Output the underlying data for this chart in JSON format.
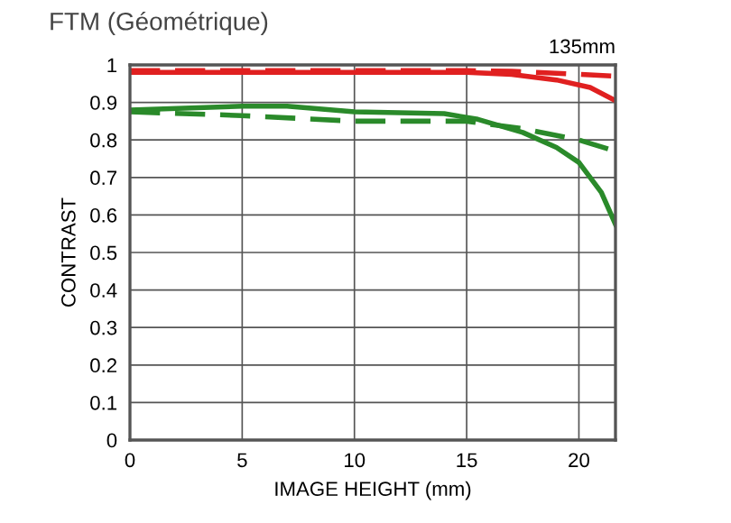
{
  "chart_data": {
    "type": "line",
    "title": "FTM (Géométrique)",
    "xlabel": "IMAGE HEIGHT (mm)",
    "ylabel": "CONTRAST",
    "annotations": [
      "135mm"
    ],
    "xlim": [
      0,
      21.63
    ],
    "ylim": [
      0,
      1
    ],
    "xticks": [
      0,
      5,
      10,
      15,
      20
    ],
    "yticks": [
      0,
      0.1,
      0.2,
      0.3,
      0.4,
      0.5,
      0.6,
      0.7,
      0.8,
      0.9,
      1
    ],
    "grid": true,
    "marker": "none",
    "series": [
      {
        "color": "#e02020",
        "line_style": "solid",
        "x": [
          0,
          5,
          10,
          15,
          17,
          19,
          20.5,
          21.63
        ],
        "values": [
          0.98,
          0.98,
          0.98,
          0.98,
          0.975,
          0.96,
          0.94,
          0.905
        ]
      },
      {
        "color": "#e02020",
        "line_style": "dashed",
        "x": [
          0,
          5,
          10,
          15,
          17,
          20,
          21.63
        ],
        "values": [
          0.985,
          0.985,
          0.985,
          0.985,
          0.983,
          0.975,
          0.97
        ]
      },
      {
        "color": "#2a8a2a",
        "line_style": "solid",
        "x": [
          0,
          5,
          7,
          10,
          14,
          15.5,
          17.5,
          19,
          20,
          21,
          21.63
        ],
        "values": [
          0.88,
          0.89,
          0.89,
          0.875,
          0.87,
          0.855,
          0.82,
          0.78,
          0.74,
          0.66,
          0.575
        ]
      },
      {
        "color": "#2a8a2a",
        "line_style": "dashed",
        "x": [
          0,
          5,
          10,
          15,
          17.5,
          20,
          21.63
        ],
        "values": [
          0.875,
          0.865,
          0.85,
          0.85,
          0.83,
          0.8,
          0.77
        ]
      }
    ]
  }
}
